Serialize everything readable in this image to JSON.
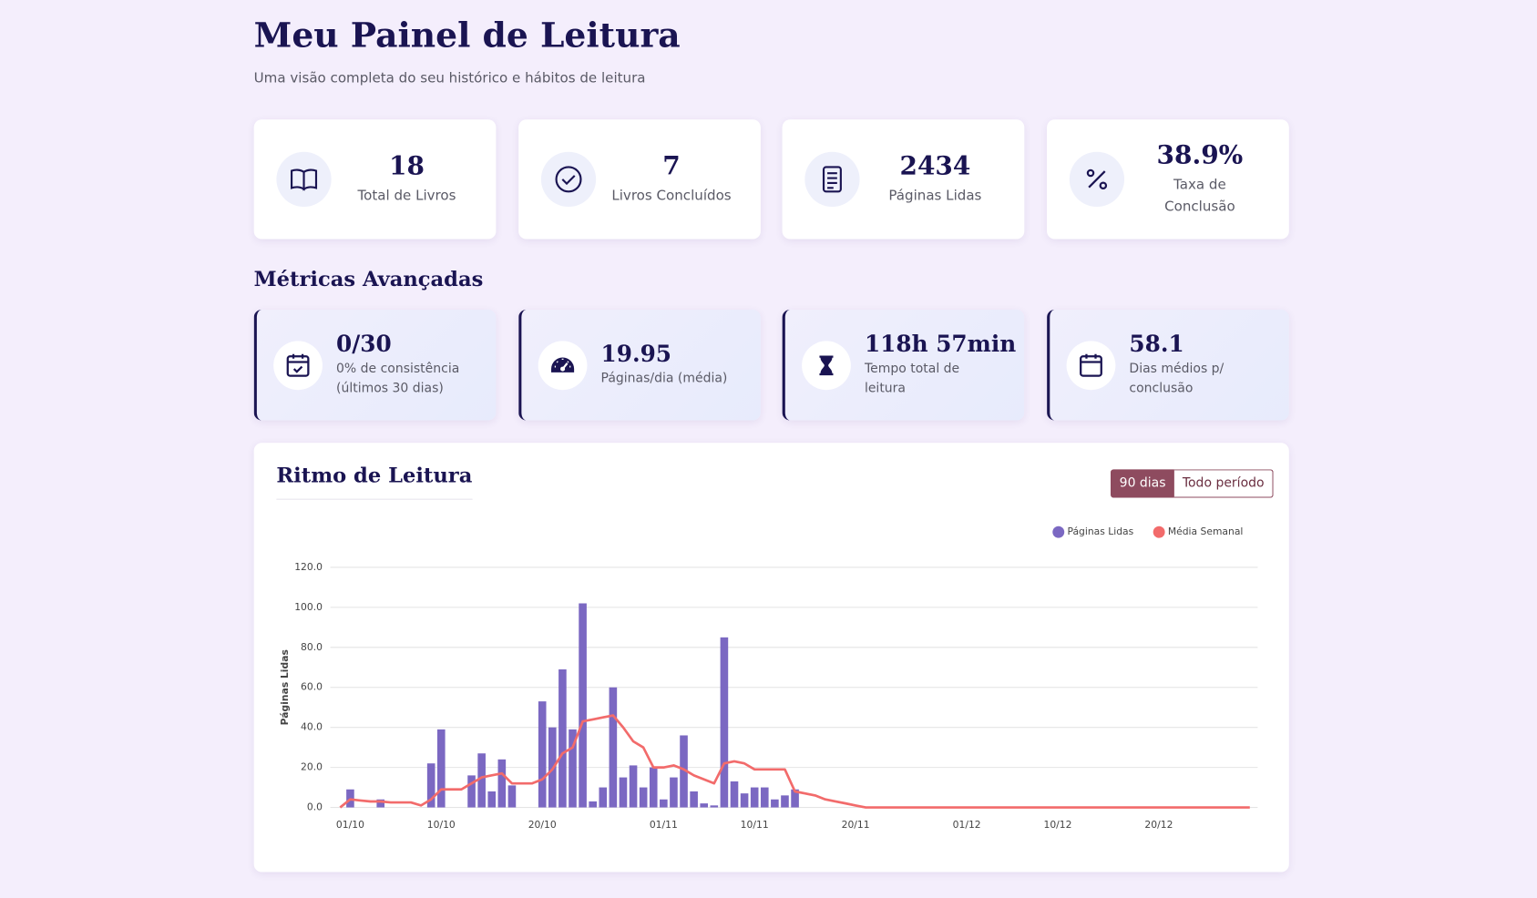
{
  "header": {
    "title": "Meu Painel de Leitura",
    "subtitle": "Uma visão completa do seu histórico e hábitos de leitura"
  },
  "stats": [
    {
      "value": "18",
      "label": "Total de Livros"
    },
    {
      "value": "7",
      "label": "Livros Concluídos"
    },
    {
      "value": "2434",
      "label": "Páginas Lidas"
    },
    {
      "value": "38.9%",
      "label": "Taxa de Conclusão"
    }
  ],
  "metrics": {
    "title": "Métricas Avançadas",
    "items": [
      {
        "value": "0/30",
        "label": "0% de consistência (últimos 30 dias)"
      },
      {
        "value": "19.95",
        "label": "Páginas/dia (média)"
      },
      {
        "value": "118h 57min",
        "label": "Tempo total de leitura"
      },
      {
        "value": "58.1",
        "label": "Dias médios p/ conclusão"
      }
    ]
  },
  "chart_data": {
    "type": "bar",
    "title": "Ritmo de Leitura",
    "controls": [
      "90 dias",
      "Todo período"
    ],
    "y_label": "Páginas Lidas",
    "categories": [
      null,
      "01/10",
      null,
      null,
      null,
      null,
      null,
      null,
      null,
      null,
      "10/10",
      null,
      null,
      null,
      null,
      null,
      null,
      null,
      null,
      null,
      "20/10",
      null,
      null,
      null,
      null,
      null,
      null,
      null,
      null,
      null,
      null,
      null,
      "01/11",
      null,
      null,
      null,
      null,
      null,
      null,
      null,
      null,
      "10/11",
      null,
      null,
      null,
      null,
      null,
      null,
      null,
      null,
      null,
      "20/11",
      null,
      null,
      null,
      null,
      null,
      null,
      null,
      null,
      null,
      null,
      "01/12",
      null,
      null,
      null,
      null,
      null,
      null,
      null,
      null,
      "10/12",
      null,
      null,
      null,
      null,
      null,
      null,
      null,
      null,
      null,
      "20/12",
      null,
      null,
      null,
      null,
      null,
      null,
      null,
      null,
      null
    ],
    "series": [
      {
        "name": "Páginas Lidas",
        "type": "bar",
        "color": "#7b68c2",
        "values": [
          0,
          9,
          0,
          0,
          4,
          0,
          0,
          0,
          0,
          22,
          39,
          0,
          0,
          16,
          27,
          8,
          24,
          11,
          0,
          0,
          53,
          40,
          69,
          39,
          102,
          3,
          10,
          60,
          15,
          21,
          10,
          20,
          4,
          15,
          36,
          8,
          2,
          1,
          85,
          13,
          7,
          10,
          10,
          4,
          6,
          9,
          0,
          0,
          0,
          0,
          0,
          0,
          0,
          0,
          0,
          0,
          0,
          0,
          0,
          0,
          0,
          0,
          0,
          0,
          0,
          0,
          0,
          0,
          0,
          0,
          0,
          0,
          0,
          0,
          0,
          0,
          0,
          0,
          0,
          0,
          0,
          0,
          0,
          0,
          0,
          0,
          0,
          0,
          0,
          0,
          0
        ]
      },
      {
        "name": "Média Semanal",
        "type": "line",
        "color": "#f26b6b",
        "values": [
          0,
          4,
          3.5,
          3,
          3,
          2.5,
          2.5,
          2.5,
          1,
          4,
          9,
          9,
          9,
          12,
          15,
          16,
          17,
          12,
          12,
          12,
          14,
          19,
          27,
          30,
          43,
          44,
          45,
          46,
          40,
          33,
          30,
          20,
          20,
          21,
          19,
          16,
          14,
          12,
          22,
          23,
          22,
          19,
          19,
          19,
          19,
          8,
          7,
          6,
          4,
          3,
          2,
          1,
          0,
          0,
          0,
          0,
          0,
          0,
          0,
          0,
          0,
          0,
          0,
          0,
          0,
          0,
          0,
          0,
          0,
          0,
          0,
          0,
          0,
          0,
          0,
          0,
          0,
          0,
          0,
          0,
          0,
          0,
          0,
          0,
          0,
          0,
          0,
          0,
          0,
          0,
          0
        ]
      }
    ],
    "ylim": [
      0,
      120
    ],
    "yticks": [
      {
        "value": 0,
        "label": "0.0"
      },
      {
        "value": 20,
        "label": "20.0"
      },
      {
        "value": 40,
        "label": "40.0"
      },
      {
        "value": 60,
        "label": "60.0"
      },
      {
        "value": 80,
        "label": "80.0"
      },
      {
        "value": 100,
        "label": "100.0"
      },
      {
        "value": 120,
        "label": "120.0"
      }
    ],
    "grid": true,
    "legend": "top-right"
  }
}
